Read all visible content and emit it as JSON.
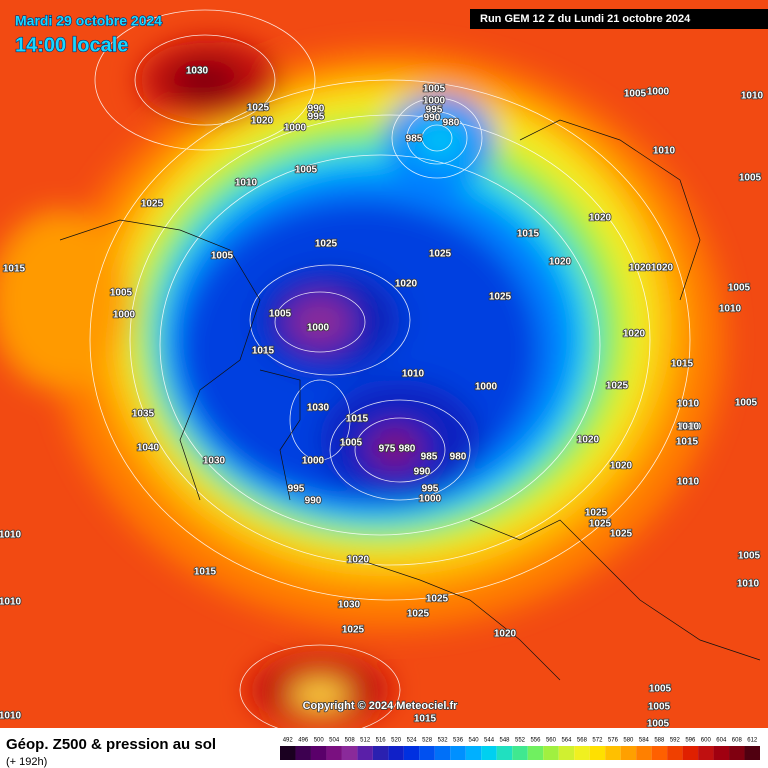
{
  "header": {
    "date": "Mardi 29 octobre 2024",
    "time": "14:00 locale",
    "run": "Run GEM 12 Z du Lundi 21 octobre 2024"
  },
  "map": {
    "copyright": "Copyright © 2024 Meteociel.fr",
    "isobar_labels": [
      1030,
      1025,
      1020,
      990,
      995,
      1000,
      1005,
      1000,
      995,
      990,
      980,
      985,
      1005,
      1000,
      1010,
      1010,
      1005,
      1005,
      1010,
      1025,
      1020,
      1015,
      1025,
      1025,
      1005,
      1020,
      1020,
      1020,
      1015,
      1020,
      1025,
      1005,
      1005,
      1000,
      1010,
      1005,
      1000,
      1020,
      1015,
      1010,
      1015,
      1000,
      1025,
      1005,
      1010,
      1035,
      1030,
      1010,
      1015,
      1010,
      1020,
      1015,
      1005,
      975,
      980,
      1040,
      1030,
      1000,
      985,
      980,
      990,
      1020,
      1010,
      995,
      995,
      990,
      1000,
      1025,
      1025,
      1025,
      1010,
      1020,
      1015,
      1005,
      1010,
      1010,
      1030,
      1025,
      1025,
      1025,
      1020,
      1005,
      1005,
      1005,
      1010,
      1015
    ]
  },
  "footer": {
    "title": "Géop. Z500 & pression au sol",
    "subtitle": "(+ 192h)",
    "scale": [
      492,
      496,
      500,
      504,
      508,
      512,
      516,
      520,
      524,
      528,
      532,
      536,
      540,
      544,
      548,
      552,
      556,
      560,
      564,
      568,
      572,
      576,
      580,
      584,
      588,
      592,
      596,
      600,
      604,
      608,
      612
    ],
    "scale_colors": [
      "#1a0020",
      "#3d0050",
      "#5a006a",
      "#7a1080",
      "#8a2a9a",
      "#5a1fa8",
      "#2a20b0",
      "#1020c8",
      "#0030e0",
      "#0050f0",
      "#0070f8",
      "#0090ff",
      "#00b0ff",
      "#00d0f0",
      "#20e0c0",
      "#40e890",
      "#70f060",
      "#a0f040",
      "#d0f030",
      "#f0f020",
      "#ffe000",
      "#ffc000",
      "#ffa000",
      "#ff8000",
      "#ff6000",
      "#f04000",
      "#e02000",
      "#c01010",
      "#a00010",
      "#800010",
      "#500010"
    ]
  }
}
